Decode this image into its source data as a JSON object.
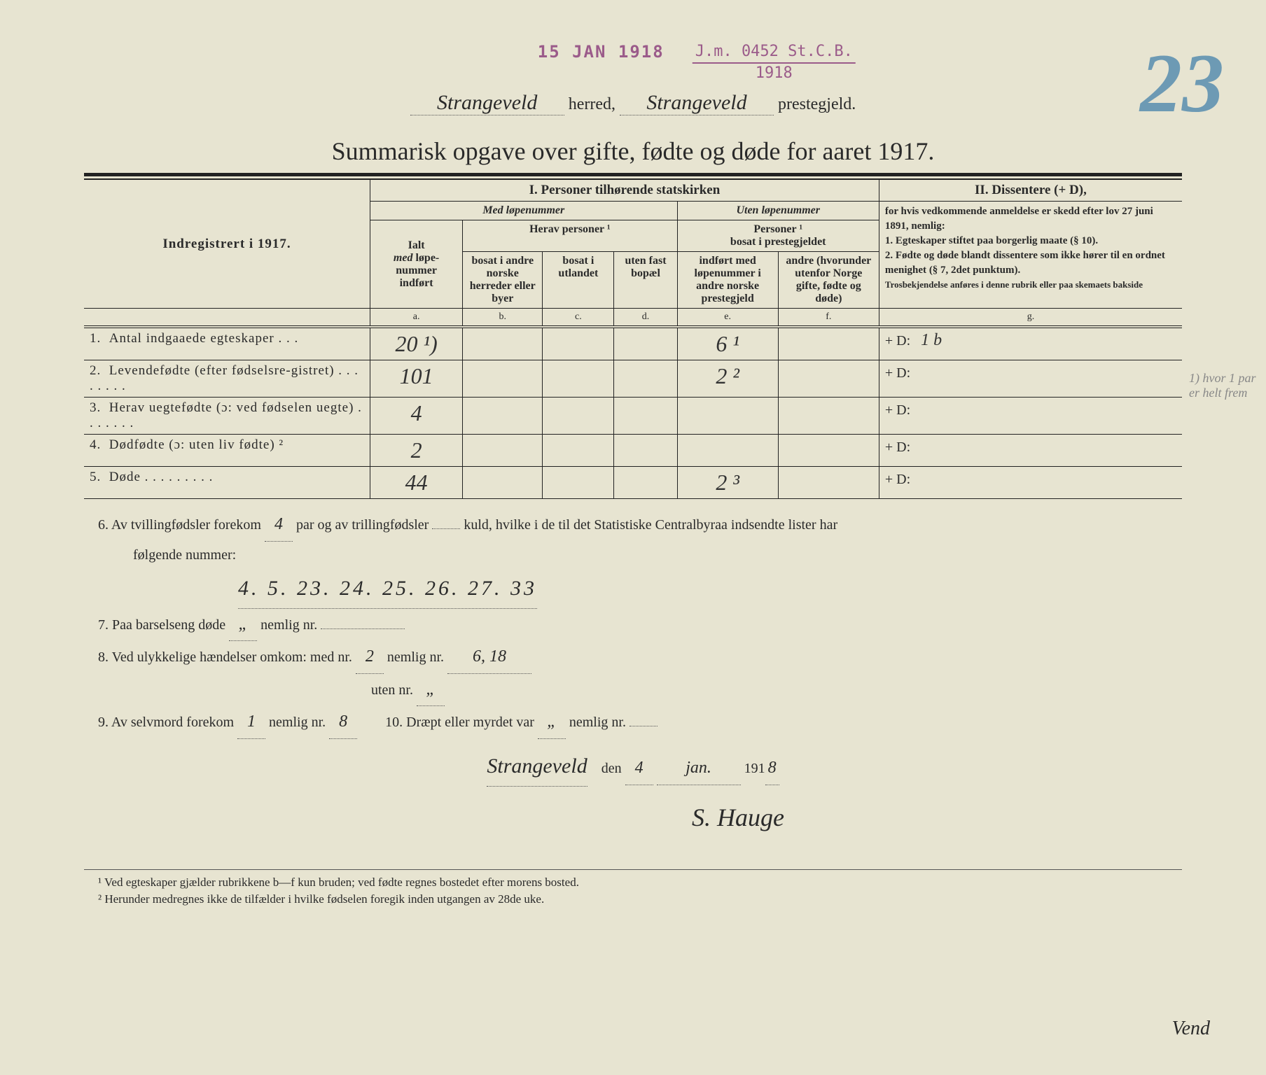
{
  "stamps": {
    "date": "15 JAN 1918",
    "ref_top": "J.m. 0452 St.C.B.",
    "ref_bottom": "1918"
  },
  "page_number": "23",
  "margin_note": "1) hvor 1 par er helt frem",
  "header": {
    "herred": "Strangeveld",
    "herred_label": "herred,",
    "prestegjeld": "Strangeveld",
    "prestegjeld_label": "prestegjeld."
  },
  "title": "Summarisk opgave over gifte, fødte og døde for aaret 1917.",
  "table": {
    "section1_title": "I.  Personer tilhørende statskirken",
    "section2_title": "II.  Dissentere (+ D),",
    "med_lope": "Med løpenummer",
    "uten_lope": "Uten løpenummer",
    "indreg": "Indregistrert i 1917.",
    "ialt": "Ialt med løpe-nummer indført",
    "herav": "Herav personer ¹",
    "col_b": "bosat i andre norske herreder eller byer",
    "col_c": "bosat i utlandet",
    "col_d": "uten fast bopæl",
    "personer_bosat": "Personer ¹ bosat i prestegjeldet",
    "col_e": "indført med løpenummer i andre norske prestegjeld",
    "col_f": "andre (hvorunder utenfor Norge gifte, fødte og døde)",
    "col_g_text": "for hvis vedkommende anmeldelse er skedd efter lov 27 juni 1891, nemlig:\n1. Egteskaper stiftet paa borgerlig maate (§ 10).\n2. Fødte og døde blandt dissentere som ikke hører til en ordnet menighet (§ 7, 2det punktum).\nTrosbekjendelse anføres i denne rubrik eller paa skemaets bakside",
    "letters": {
      "a": "a.",
      "b": "b.",
      "c": "c.",
      "d": "d.",
      "e": "e.",
      "f": "f.",
      "g": "g."
    },
    "rows": [
      {
        "n": "1.",
        "label": "Antal indgaaede egteskaper . . .",
        "a": "20 ¹)",
        "e": "6 ¹",
        "g": "+ D:",
        "gval": "1 b"
      },
      {
        "n": "2.",
        "label": "Levendefødte (efter fødselsre-gistret) . . . . . . . .",
        "a": "101",
        "e": "2 ²",
        "g": "+ D:",
        "gval": ""
      },
      {
        "n": "3.",
        "label": "Herav uegtefødte (ɔ: ved fødselen uegte) . . . . . . .",
        "a": "4",
        "e": "",
        "g": "+ D:",
        "gval": ""
      },
      {
        "n": "4.",
        "label": "Dødfødte (ɔ: uten liv fødte) ²",
        "a": "2",
        "e": "",
        "g": "+ D:",
        "gval": ""
      },
      {
        "n": "5.",
        "label": "Døde . . . . . . . . .",
        "a": "44",
        "e": "2 ³",
        "g": "+ D:",
        "gval": ""
      }
    ]
  },
  "lower": {
    "l6a": "6.   Av tvillingfødsler forekom",
    "l6_twin": "4",
    "l6b": "par og av trillingfødsler",
    "l6_trip": "",
    "l6c": "kuld, hvilke i de til det Statistiske Centralbyraa indsendte lister har",
    "l6d": "følgende nummer:",
    "l6_nums": "4. 5.  23. 24.  25. 26.  27. 33",
    "l7": "7.   Paa barselseng døde",
    "l7_v": "„",
    "l7b": "nemlig nr.",
    "l7_nr": "",
    "l8": "8.   Ved ulykkelige hændelser omkom:   med nr.",
    "l8_med": "2",
    "l8b": "nemlig nr.",
    "l8_nr": "6, 18",
    "l8c": "uten nr.",
    "l8_uten": "„",
    "l9": "9.   Av selvmord forekom",
    "l9_v": "1",
    "l9b": "nemlig nr.",
    "l9_nr": "8",
    "l10": "10.   Dræpt eller myrdet var",
    "l10_v": "„",
    "l10b": "nemlig nr.",
    "l10_nr": "",
    "place": "Strangeveld",
    "den": "den",
    "date_d": "4",
    "date_m": "jan.",
    "date_y": "191",
    "date_y2": "8",
    "signature": "S. Hauge"
  },
  "footnotes": {
    "f1": "¹ Ved egteskaper gjælder rubrikkene b—f kun bruden; ved fødte regnes bostedet efter morens bosted.",
    "f2": "² Herunder medregnes ikke de tilfælder i hvilke fødselen foregik inden utgangen av 28de uke."
  },
  "vend": "Vend"
}
